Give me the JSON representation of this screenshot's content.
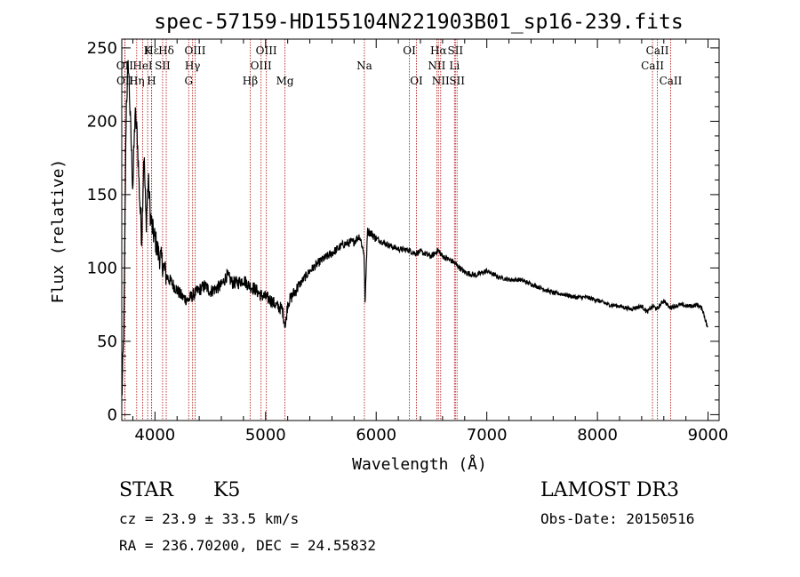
{
  "chart_data": {
    "type": "line",
    "title": "spec-57159-HD155104N221903B01_sp16-239.fits",
    "xlabel": "Wavelength (Å)",
    "ylabel": "Flux (relative)",
    "xlim": [
      3700,
      9100
    ],
    "ylim": [
      -4,
      256
    ],
    "xticks": [
      4000,
      5000,
      6000,
      7000,
      8000,
      9000
    ],
    "yticks": [
      0,
      50,
      100,
      150,
      200,
      250
    ],
    "spectrum": {
      "name": "flux",
      "x": [
        3700,
        3720,
        3740,
        3760,
        3780,
        3800,
        3820,
        3840,
        3860,
        3880,
        3900,
        3920,
        3940,
        3960,
        3980,
        4000,
        4030,
        4060,
        4100,
        4150,
        4200,
        4250,
        4300,
        4350,
        4400,
        4450,
        4500,
        4550,
        4600,
        4650,
        4700,
        4750,
        4800,
        4850,
        4900,
        4950,
        5000,
        5050,
        5100,
        5150,
        5180,
        5200,
        5250,
        5300,
        5400,
        5500,
        5600,
        5700,
        5800,
        5850,
        5890,
        5900,
        5920,
        5950,
        6000,
        6050,
        6100,
        6200,
        6300,
        6350,
        6400,
        6500,
        6560,
        6600,
        6700,
        6800,
        6900,
        7000,
        7100,
        7200,
        7300,
        7400,
        7500,
        7600,
        7700,
        7800,
        7900,
        8000,
        8100,
        8200,
        8300,
        8400,
        8450,
        8500,
        8540,
        8600,
        8650,
        8700,
        8750,
        8800,
        8850,
        8900,
        8950,
        9000
      ],
      "y": [
        10,
        60,
        210,
        240,
        195,
        155,
        205,
        190,
        150,
        120,
        180,
        130,
        160,
        135,
        125,
        120,
        110,
        105,
        95,
        90,
        85,
        80,
        78,
        82,
        85,
        88,
        84,
        86,
        88,
        95,
        90,
        90,
        92,
        88,
        86,
        82,
        80,
        78,
        74,
        72,
        60,
        76,
        82,
        88,
        98,
        105,
        110,
        116,
        118,
        122,
        110,
        75,
        125,
        124,
        120,
        118,
        116,
        113,
        112,
        110,
        111,
        108,
        112,
        108,
        104,
        97,
        95,
        98,
        94,
        92,
        92,
        89,
        86,
        83,
        82,
        80,
        80,
        78,
        75,
        74,
        72,
        74,
        70,
        74,
        72,
        78,
        73,
        74,
        75,
        74,
        74,
        75,
        72,
        58
      ]
    },
    "spectral_lines": [
      {
        "label": "Hε",
        "wl": 3970,
        "row": 1
      },
      {
        "label": "K",
        "wl": 3934,
        "row": 1
      },
      {
        "label": "Hδ",
        "wl": 4102,
        "row": 1
      },
      {
        "label": "OIII",
        "wl": 4363,
        "row": 1
      },
      {
        "label": "OIII",
        "wl": 5007,
        "row": 1
      },
      {
        "label": "OI",
        "wl": 6300,
        "row": 1
      },
      {
        "label": "Hα",
        "wl": 6563,
        "row": 1
      },
      {
        "label": "SII",
        "wl": 6716,
        "row": 1
      },
      {
        "label": "CaII",
        "wl": 8542,
        "row": 1
      },
      {
        "label": "OII",
        "wl": 3727,
        "row": 2
      },
      {
        "label": "HeI",
        "wl": 3889,
        "row": 2
      },
      {
        "label": "SII",
        "wl": 4069,
        "row": 2
      },
      {
        "label": "Hγ",
        "wl": 4340,
        "row": 2
      },
      {
        "label": "OIII",
        "wl": 4959,
        "row": 2
      },
      {
        "label": "Na",
        "wl": 5893,
        "row": 2
      },
      {
        "label": "NII",
        "wl": 6548,
        "row": 2
      },
      {
        "label": "Li",
        "wl": 6708,
        "row": 2
      },
      {
        "label": "CaII",
        "wl": 8498,
        "row": 2
      },
      {
        "label": "OII",
        "wl": 3729,
        "row": 3
      },
      {
        "label": "Hη",
        "wl": 3835,
        "row": 3
      },
      {
        "label": "H",
        "wl": 3969,
        "row": 3
      },
      {
        "label": "G",
        "wl": 4305,
        "row": 3
      },
      {
        "label": "Hβ",
        "wl": 4861,
        "row": 3
      },
      {
        "label": "Mg",
        "wl": 5175,
        "row": 3
      },
      {
        "label": "OI",
        "wl": 6364,
        "row": 3
      },
      {
        "label": "NII",
        "wl": 6583,
        "row": 3
      },
      {
        "label": "SII",
        "wl": 6731,
        "row": 3
      },
      {
        "label": "CaII",
        "wl": 8662,
        "row": 3
      }
    ],
    "colors": {
      "spectrum": "#000000",
      "line_markers": "#b22222",
      "axes": "#000000"
    }
  },
  "info": {
    "object_class": "STAR",
    "subclass": "K5",
    "survey": "LAMOST DR3",
    "cz": "cz = 23.9 ± 33.5 km/s",
    "obs_date": "Obs-Date: 20150516",
    "radec": "RA = 236.70200, DEC =  24.55832"
  }
}
